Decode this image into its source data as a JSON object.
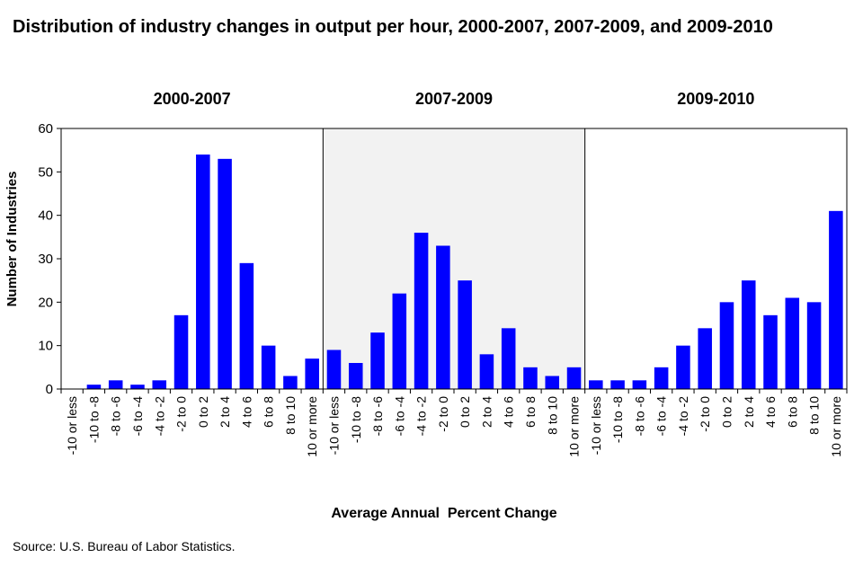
{
  "title": "Distribution of industry changes in output per hour, 2000-2007, 2007-2009, and 2009-2010",
  "source": "Source: U.S. Bureau of Labor Statistics.",
  "colors": {
    "bar": "#0000FF",
    "shaded_panel": "#F2F2F2",
    "axis": "#000000"
  },
  "chart_data": {
    "type": "bar",
    "xlabel": "Average Annual  Percent Change",
    "ylabel": "Number of Industries",
    "ylim": [
      0,
      60
    ],
    "yticks": [
      0,
      10,
      20,
      30,
      40,
      50,
      60
    ],
    "grid": false,
    "legend": "none",
    "categories": [
      "-10 or less",
      "-10 to -8",
      "-8 to -6",
      "-6 to -4",
      "-4 to -2",
      "-2 to 0",
      "0 to 2",
      "2 to 4",
      "4 to 6",
      "6 to 8",
      "8 to 10",
      "10 or more"
    ],
    "series": [
      {
        "name": "2000-2007",
        "shaded": false,
        "values": [
          0,
          1,
          2,
          1,
          2,
          17,
          54,
          53,
          29,
          10,
          3,
          7
        ]
      },
      {
        "name": "2007-2009",
        "shaded": true,
        "values": [
          9,
          6,
          13,
          22,
          36,
          33,
          25,
          8,
          14,
          5,
          3,
          5
        ]
      },
      {
        "name": "2009-2010",
        "shaded": false,
        "values": [
          2,
          2,
          2,
          5,
          10,
          14,
          20,
          25,
          17,
          21,
          20,
          41
        ]
      }
    ]
  }
}
